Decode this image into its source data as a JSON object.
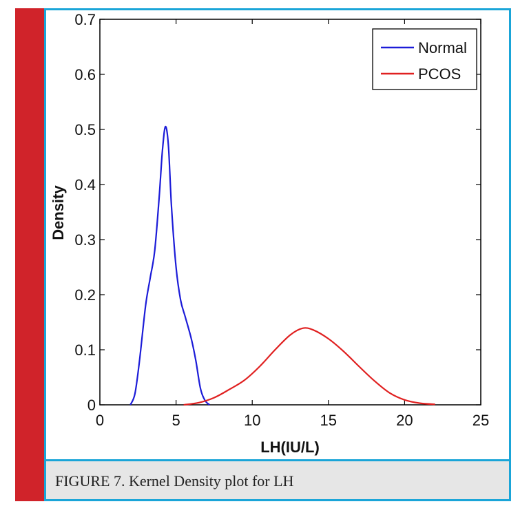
{
  "caption": "FIGURE 7. Kernel Density plot for LH",
  "chart_data": {
    "type": "line",
    "title": "",
    "xlabel": "LH(IU/L)",
    "ylabel": "Density",
    "xlim": [
      0,
      25
    ],
    "ylim": [
      0,
      0.7
    ],
    "xticks": [
      0,
      5,
      10,
      15,
      20,
      25
    ],
    "xtick_labels": [
      "0",
      "5",
      "10",
      "15",
      "20",
      "25"
    ],
    "yticks": [
      0,
      0.1,
      0.2,
      0.3,
      0.4,
      0.5,
      0.6,
      0.7
    ],
    "ytick_labels": [
      "0",
      "0.1",
      "0.2",
      "0.3",
      "0.4",
      "0.5",
      "0.6",
      "0.7"
    ],
    "grid": false,
    "legend_position": "top-right",
    "series": [
      {
        "name": "Normal",
        "color": "#1c1cd8",
        "x": [
          2.0,
          2.3,
          2.6,
          3.0,
          3.3,
          3.6,
          3.9,
          4.1,
          4.3,
          4.5,
          4.7,
          5.0,
          5.3,
          5.6,
          6.0,
          6.3,
          6.6,
          6.9,
          7.2
        ],
        "y": [
          0.0,
          0.02,
          0.08,
          0.18,
          0.23,
          0.28,
          0.38,
          0.46,
          0.505,
          0.47,
          0.36,
          0.25,
          0.19,
          0.16,
          0.12,
          0.08,
          0.03,
          0.008,
          0.0
        ]
      },
      {
        "name": "PCOS",
        "color": "#e02020",
        "x": [
          5.5,
          6.5,
          7.5,
          8.5,
          9.5,
          10.5,
          11.5,
          12.5,
          13.3,
          14.0,
          15.0,
          16.0,
          17.0,
          18.0,
          19.0,
          20.0,
          21.0,
          22.0
        ],
        "y": [
          0.0,
          0.004,
          0.013,
          0.028,
          0.045,
          0.07,
          0.1,
          0.127,
          0.139,
          0.136,
          0.12,
          0.097,
          0.07,
          0.044,
          0.022,
          0.009,
          0.003,
          0.001
        ]
      }
    ]
  }
}
